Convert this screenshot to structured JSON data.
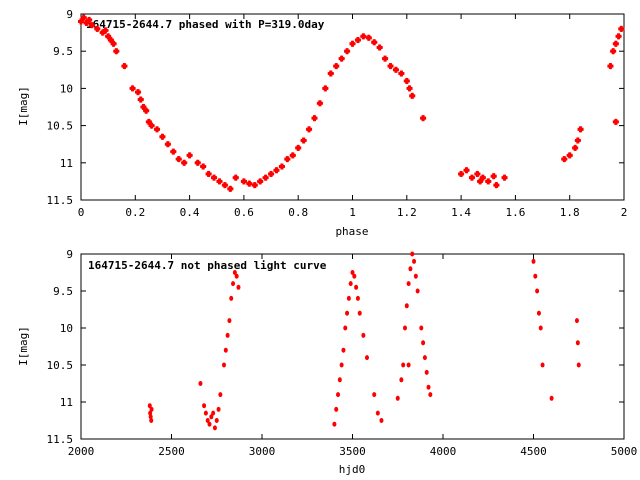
{
  "chart_data": [
    {
      "type": "scatter",
      "title": "164715-2644.7 phased with P=319.0day",
      "xlabel": "phase",
      "ylabel": "I[mag]",
      "xlim": [
        0,
        2
      ],
      "ylim": [
        11.5,
        9
      ],
      "y_inverted": true,
      "xticks": [
        "0",
        "0.2",
        "0.4",
        "0.6",
        "0.8",
        "1",
        "1.2",
        "1.4",
        "1.6",
        "1.8",
        "2"
      ],
      "yticks": [
        "9",
        "9.5",
        "10",
        "10.5",
        "11",
        "11.5"
      ],
      "marker_color": "#ff0000",
      "series": [
        {
          "points": [
            [
              0.0,
              9.1
            ],
            [
              0.01,
              9.05
            ],
            [
              0.02,
              9.12
            ],
            [
              0.03,
              9.08
            ],
            [
              0.04,
              9.15
            ],
            [
              0.06,
              9.2
            ],
            [
              0.08,
              9.25
            ],
            [
              0.09,
              9.22
            ],
            [
              0.1,
              9.3
            ],
            [
              0.11,
              9.35
            ],
            [
              0.12,
              9.4
            ],
            [
              0.13,
              9.5
            ],
            [
              0.16,
              9.7
            ],
            [
              0.19,
              10.0
            ],
            [
              0.21,
              10.05
            ],
            [
              0.22,
              10.15
            ],
            [
              0.23,
              10.25
            ],
            [
              0.24,
              10.3
            ],
            [
              0.25,
              10.45
            ],
            [
              0.26,
              10.5
            ],
            [
              0.28,
              10.55
            ],
            [
              0.3,
              10.65
            ],
            [
              0.32,
              10.75
            ],
            [
              0.34,
              10.85
            ],
            [
              0.36,
              10.95
            ],
            [
              0.38,
              11.0
            ],
            [
              0.4,
              10.9
            ],
            [
              0.43,
              11.0
            ],
            [
              0.45,
              11.05
            ],
            [
              0.47,
              11.15
            ],
            [
              0.49,
              11.2
            ],
            [
              0.51,
              11.25
            ],
            [
              0.53,
              11.3
            ],
            [
              0.55,
              11.35
            ],
            [
              0.57,
              11.2
            ],
            [
              0.6,
              11.25
            ],
            [
              0.62,
              11.28
            ],
            [
              0.64,
              11.3
            ],
            [
              0.66,
              11.25
            ],
            [
              0.68,
              11.2
            ],
            [
              0.7,
              11.15
            ],
            [
              0.72,
              11.1
            ],
            [
              0.74,
              11.05
            ],
            [
              0.76,
              10.95
            ],
            [
              0.78,
              10.9
            ],
            [
              0.8,
              10.8
            ],
            [
              0.82,
              10.7
            ],
            [
              0.84,
              10.55
            ],
            [
              0.86,
              10.4
            ],
            [
              0.88,
              10.2
            ],
            [
              0.9,
              10.0
            ],
            [
              0.92,
              9.8
            ],
            [
              0.94,
              9.7
            ],
            [
              0.96,
              9.6
            ],
            [
              0.98,
              9.5
            ],
            [
              1.0,
              9.4
            ],
            [
              1.02,
              9.35
            ],
            [
              1.04,
              9.3
            ],
            [
              1.06,
              9.32
            ],
            [
              1.08,
              9.38
            ],
            [
              1.1,
              9.45
            ],
            [
              1.12,
              9.6
            ],
            [
              1.14,
              9.7
            ],
            [
              1.16,
              9.75
            ],
            [
              1.18,
              9.8
            ],
            [
              1.2,
              9.9
            ],
            [
              1.21,
              10.0
            ],
            [
              1.22,
              10.1
            ],
            [
              1.26,
              10.4
            ],
            [
              1.4,
              11.15
            ],
            [
              1.42,
              11.1
            ],
            [
              1.44,
              11.2
            ],
            [
              1.46,
              11.15
            ],
            [
              1.47,
              11.25
            ],
            [
              1.48,
              11.2
            ],
            [
              1.5,
              11.25
            ],
            [
              1.52,
              11.18
            ],
            [
              1.53,
              11.3
            ],
            [
              1.56,
              11.2
            ],
            [
              1.78,
              10.95
            ],
            [
              1.8,
              10.9
            ],
            [
              1.82,
              10.8
            ],
            [
              1.83,
              10.7
            ],
            [
              1.84,
              10.55
            ],
            [
              1.95,
              9.7
            ],
            [
              1.96,
              9.5
            ],
            [
              1.97,
              9.4
            ],
            [
              1.98,
              9.3
            ],
            [
              1.99,
              9.2
            ],
            [
              1.97,
              10.45
            ]
          ]
        }
      ]
    },
    {
      "type": "scatter",
      "title": "164715-2644.7 not phased light curve",
      "xlabel": "hjd0",
      "ylabel": "I[mag]",
      "xlim": [
        2000,
        5000
      ],
      "ylim": [
        11.5,
        9
      ],
      "y_inverted": true,
      "xticks": [
        "2000",
        "2500",
        "3000",
        "3500",
        "4000",
        "4500",
        "5000"
      ],
      "yticks": [
        "9",
        "9.5",
        "10",
        "10.5",
        "11",
        "11.5"
      ],
      "marker_color": "#ff0000",
      "series": [
        {
          "points": [
            [
              2380,
              11.05
            ],
            [
              2382,
              11.15
            ],
            [
              2385,
              11.2
            ],
            [
              2388,
              11.25
            ],
            [
              2390,
              11.1
            ],
            [
              2660,
              10.75
            ],
            [
              2680,
              11.05
            ],
            [
              2690,
              11.15
            ],
            [
              2700,
              11.25
            ],
            [
              2710,
              11.3
            ],
            [
              2720,
              11.2
            ],
            [
              2730,
              11.15
            ],
            [
              2740,
              11.35
            ],
            [
              2750,
              11.25
            ],
            [
              2760,
              11.1
            ],
            [
              2770,
              10.9
            ],
            [
              2790,
              10.5
            ],
            [
              2800,
              10.3
            ],
            [
              2810,
              10.1
            ],
            [
              2820,
              9.9
            ],
            [
              2830,
              9.6
            ],
            [
              2840,
              9.4
            ],
            [
              2850,
              9.25
            ],
            [
              2860,
              9.3
            ],
            [
              2870,
              9.45
            ],
            [
              3400,
              11.3
            ],
            [
              3410,
              11.1
            ],
            [
              3420,
              10.9
            ],
            [
              3430,
              10.7
            ],
            [
              3440,
              10.5
            ],
            [
              3450,
              10.3
            ],
            [
              3460,
              10.0
            ],
            [
              3470,
              9.8
            ],
            [
              3480,
              9.6
            ],
            [
              3490,
              9.4
            ],
            [
              3500,
              9.25
            ],
            [
              3510,
              9.3
            ],
            [
              3520,
              9.45
            ],
            [
              3530,
              9.6
            ],
            [
              3540,
              9.8
            ],
            [
              3560,
              10.1
            ],
            [
              3580,
              10.4
            ],
            [
              3620,
              10.9
            ],
            [
              3640,
              11.15
            ],
            [
              3660,
              11.25
            ],
            [
              3750,
              10.95
            ],
            [
              3770,
              10.7
            ],
            [
              3780,
              10.5
            ],
            [
              3790,
              10.0
            ],
            [
              3800,
              9.7
            ],
            [
              3810,
              9.4
            ],
            [
              3820,
              9.2
            ],
            [
              3830,
              9.0
            ],
            [
              3840,
              9.1
            ],
            [
              3850,
              9.3
            ],
            [
              3860,
              9.5
            ],
            [
              3880,
              10.0
            ],
            [
              3890,
              10.2
            ],
            [
              3900,
              10.4
            ],
            [
              3910,
              10.6
            ],
            [
              3920,
              10.8
            ],
            [
              3930,
              10.9
            ],
            [
              3810,
              10.5
            ],
            [
              4500,
              9.1
            ],
            [
              4510,
              9.3
            ],
            [
              4520,
              9.5
            ],
            [
              4530,
              9.8
            ],
            [
              4540,
              10.0
            ],
            [
              4550,
              10.5
            ],
            [
              4600,
              10.95
            ],
            [
              4740,
              9.9
            ],
            [
              4745,
              10.2
            ],
            [
              4750,
              10.5
            ]
          ]
        }
      ]
    }
  ]
}
